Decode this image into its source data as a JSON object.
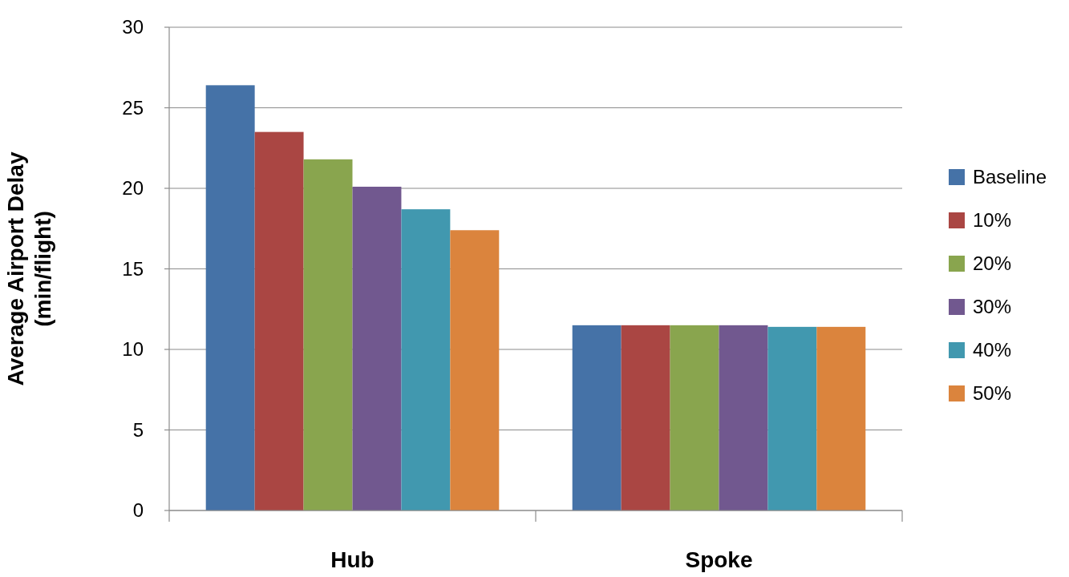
{
  "chart_data": {
    "type": "bar",
    "ylabel": "Average Airport Delay\n(min/flight)",
    "categories": [
      "Hub",
      "Spoke"
    ],
    "series": [
      {
        "name": "Baseline",
        "color": "#4572a7",
        "values": [
          26.4,
          11.5
        ]
      },
      {
        "name": "10%",
        "color": "#aa4643",
        "values": [
          23.5,
          11.5
        ]
      },
      {
        "name": "20%",
        "color": "#89a54e",
        "values": [
          21.8,
          11.5
        ]
      },
      {
        "name": "30%",
        "color": "#71588f",
        "values": [
          20.1,
          11.5
        ]
      },
      {
        "name": "40%",
        "color": "#4198af",
        "values": [
          18.7,
          11.4
        ]
      },
      {
        "name": "50%",
        "color": "#db843d",
        "values": [
          17.4,
          11.4
        ]
      }
    ],
    "ylim": [
      0,
      30
    ],
    "yticks": [
      0,
      5,
      10,
      15,
      20,
      25,
      30
    ],
    "grid": "y",
    "legend": "right"
  }
}
